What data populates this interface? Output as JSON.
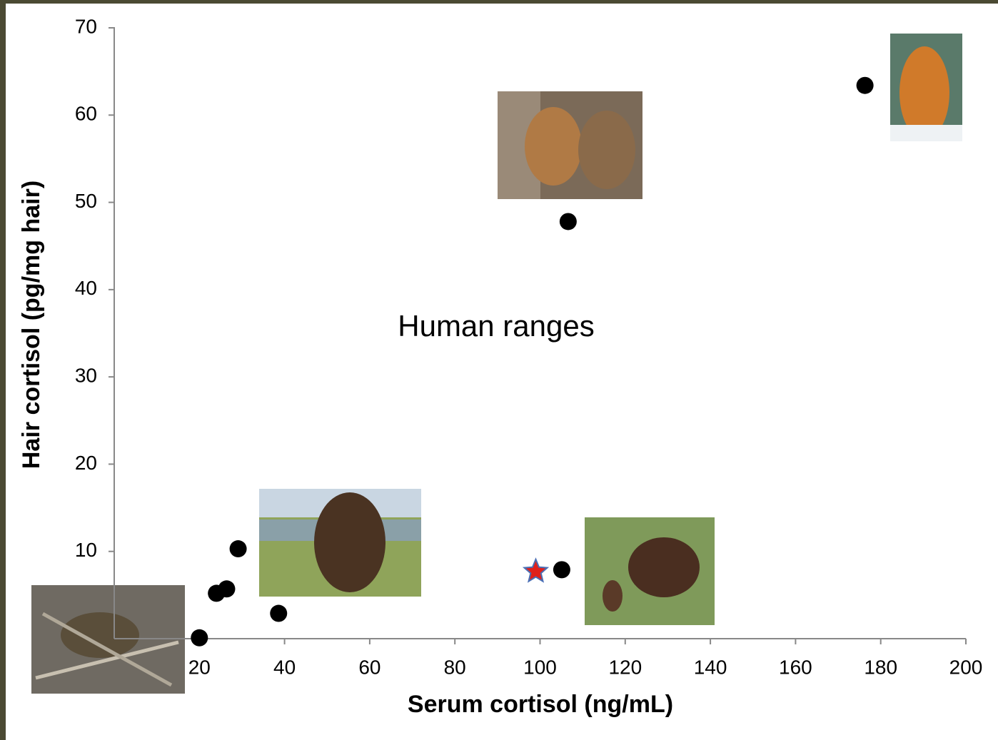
{
  "chart_data": {
    "type": "scatter",
    "x_label": "Serum cortisol (ng/mL)",
    "y_label": "Hair cortisol (pg/mg hair)",
    "annotation": "Human ranges",
    "xlim": [
      0,
      200
    ],
    "xticks": [
      20,
      40,
      60,
      80,
      100,
      120,
      140,
      160,
      180,
      200
    ],
    "ylim": [
      0,
      70
    ],
    "yticks": [
      10,
      20,
      30,
      40,
      50,
      60,
      70
    ],
    "grid": false,
    "series": [
      {
        "marker": "circle",
        "color": "#000000",
        "x": [
          20,
          24,
          26.4,
          29.1,
          38.6,
          105.1,
          106.6,
          176.3
        ],
        "y": [
          0.1,
          5.2,
          5.7,
          10.3,
          2.9,
          7.9,
          47.8,
          63.4
        ]
      },
      {
        "marker": "star",
        "color": "#e0201b",
        "edge_color": "#4a6fb5",
        "x": [
          99
        ],
        "y": [
          7.7
        ]
      }
    ]
  }
}
